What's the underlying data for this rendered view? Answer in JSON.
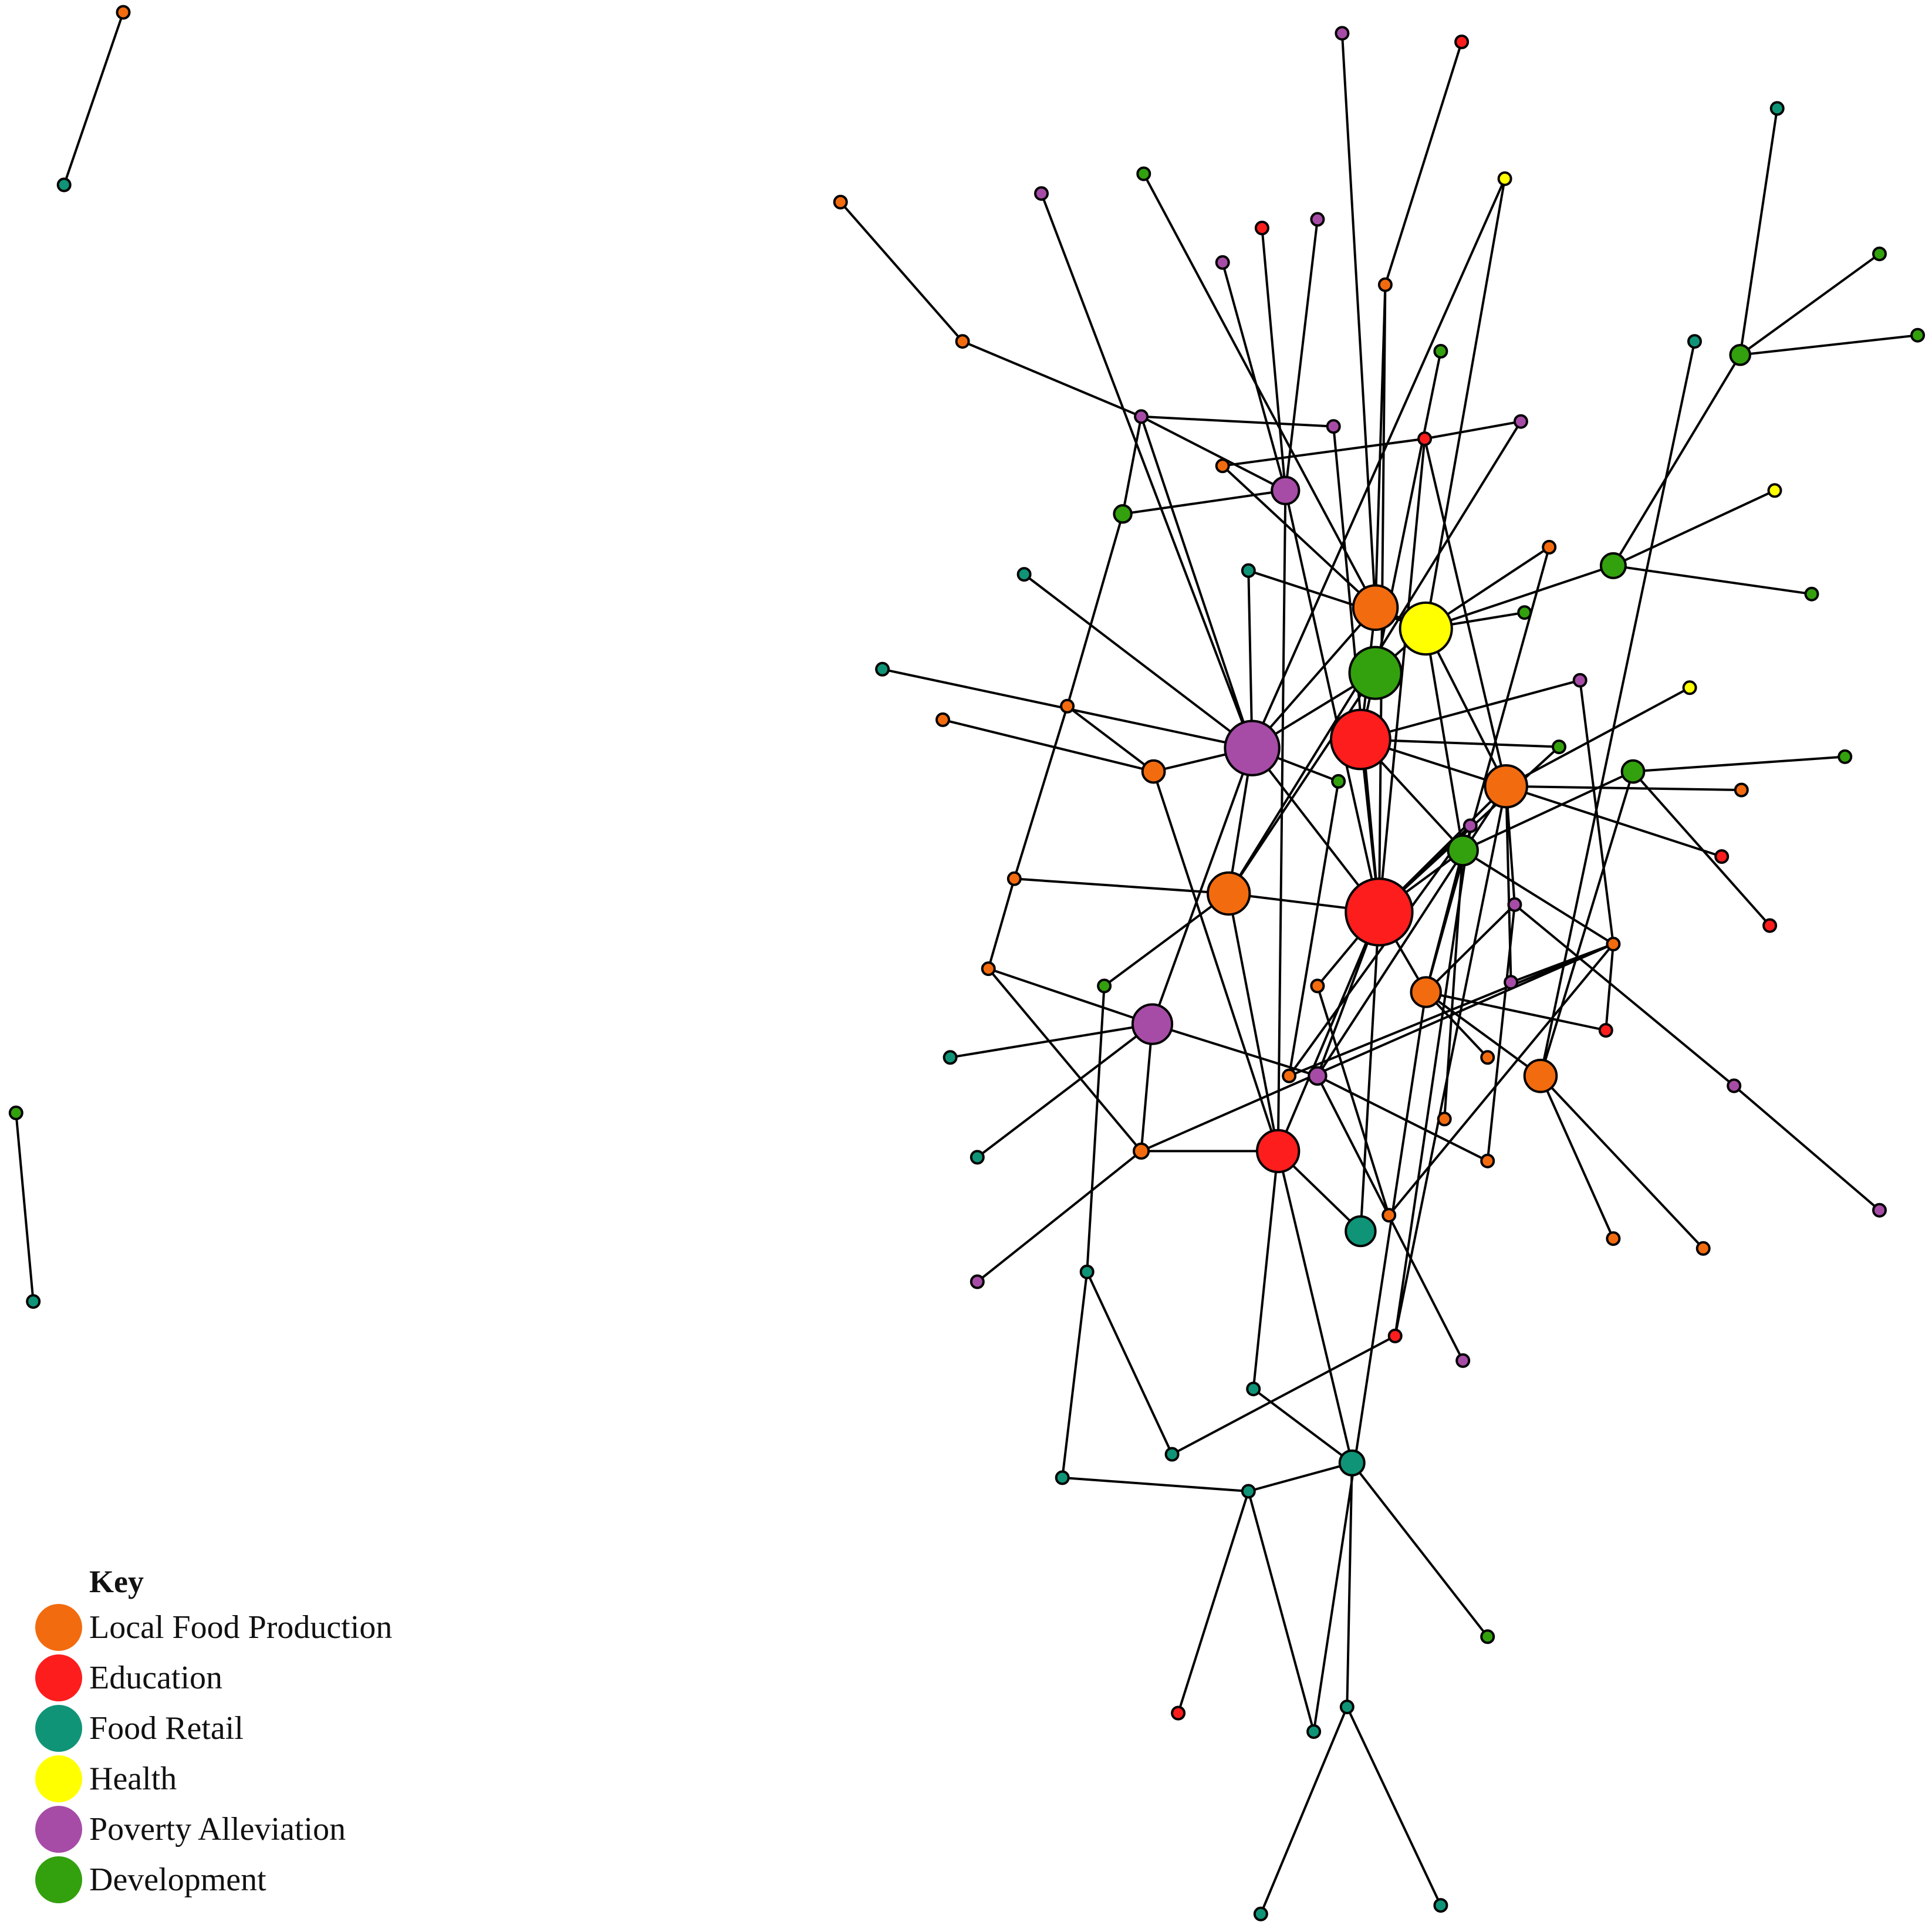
{
  "colors": {
    "local_food_production": "#f26b0f",
    "education": "#fd1d1d",
    "food_retail": "#0f9477",
    "health": "#ffff00",
    "poverty_alleviation": "#a64ca6",
    "development": "#33a00d"
  },
  "legend": {
    "title": "Key",
    "items": [
      {
        "label": "Local Food Production",
        "category": "local_food_production"
      },
      {
        "label": "Education",
        "category": "education"
      },
      {
        "label": "Food Retail",
        "category": "food_retail"
      },
      {
        "label": "Health",
        "category": "health"
      },
      {
        "label": "Poverty Alleviation",
        "category": "poverty_alleviation"
      },
      {
        "label": "Development",
        "category": "development"
      }
    ]
  }
}
